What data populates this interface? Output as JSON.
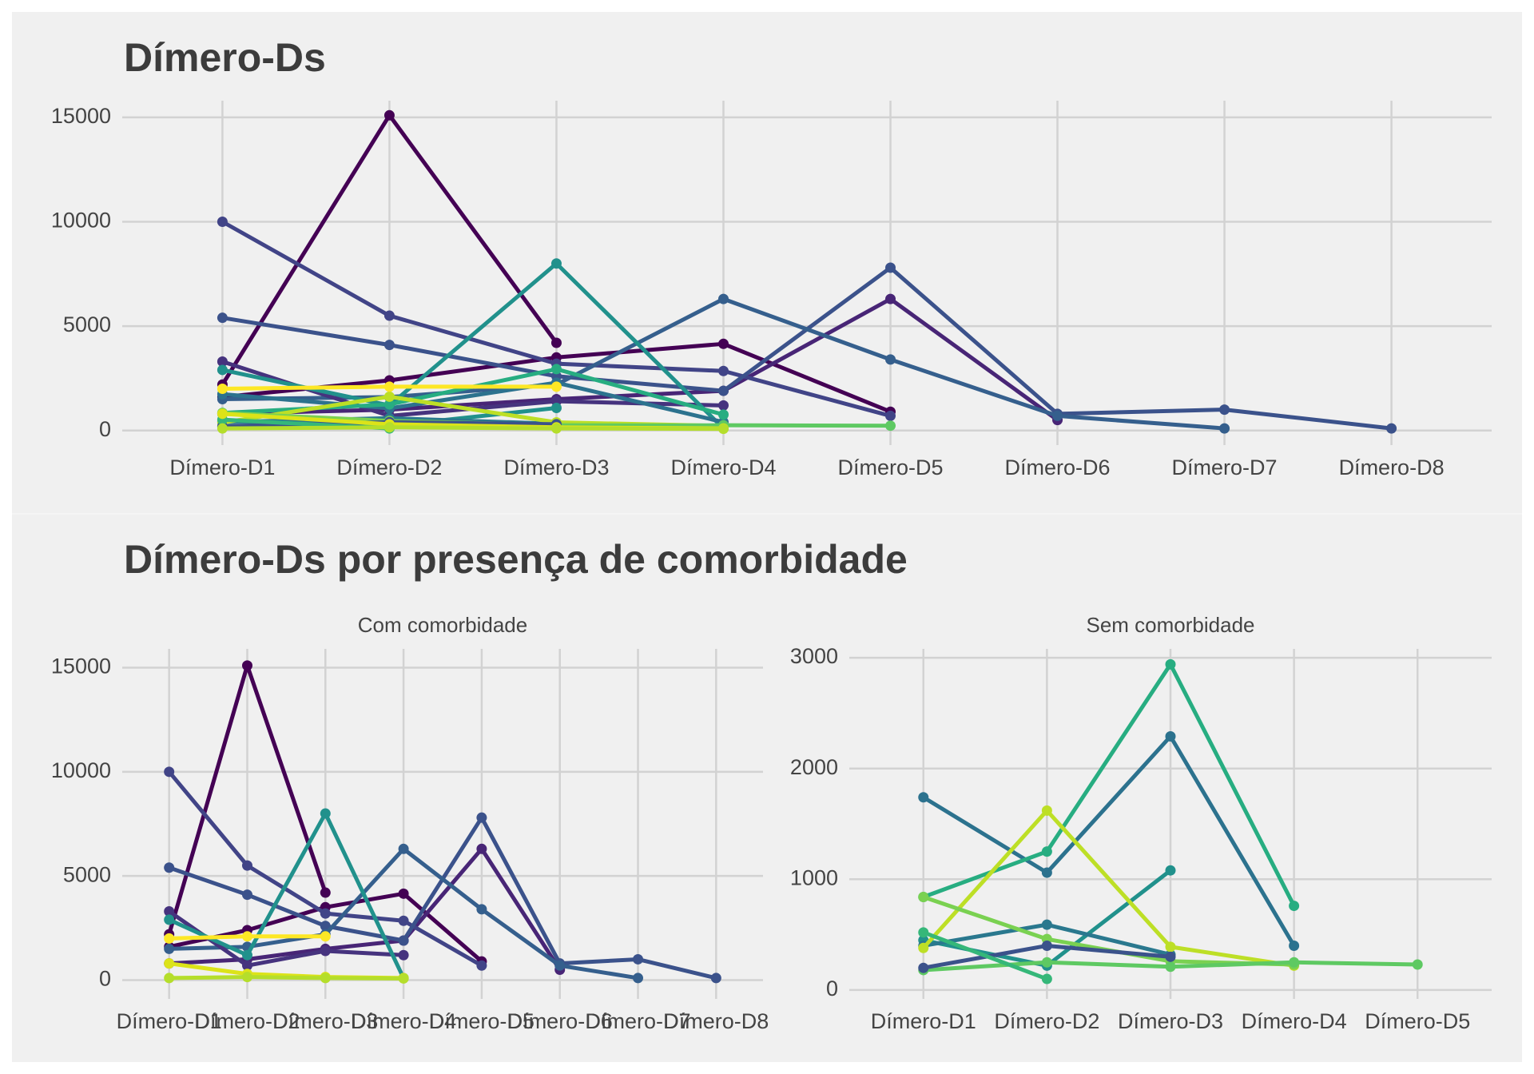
{
  "chart_data": [
    {
      "type": "line",
      "title": "Dímero-Ds",
      "categories": [
        "Dímero-D1",
        "Dímero-D2",
        "Dímero-D3",
        "Dímero-D4",
        "Dímero-D5",
        "Dímero-D6",
        "Dímero-D7",
        "Dímero-D8"
      ],
      "ylim": [
        -700,
        15800
      ],
      "yticks": [
        0,
        5000,
        10000,
        15000
      ],
      "grid": true,
      "series": [
        {
          "color": "#440154",
          "values": [
            2200,
            15100,
            4200,
            null,
            null,
            null,
            null,
            null
          ]
        },
        {
          "color": "#440154",
          "values": [
            1600,
            2400,
            3500,
            4150,
            900,
            null,
            null,
            null
          ]
        },
        {
          "color": "#482576",
          "values": [
            800,
            1000,
            1500,
            1900,
            6300,
            500,
            null,
            null
          ]
        },
        {
          "color": "#414487",
          "values": [
            10000,
            5500,
            3200,
            2850,
            700,
            null,
            null,
            null
          ]
        },
        {
          "color": "#3b528b",
          "values": [
            5400,
            4100,
            2600,
            1900,
            7800,
            800,
            1000,
            100
          ]
        },
        {
          "color": "#355f8d",
          "values": [
            1500,
            1600,
            2200,
            6300,
            3400,
            700,
            100,
            null
          ]
        },
        {
          "color": "#46337e",
          "values": [
            3300,
            700,
            1400,
            1200,
            null,
            null,
            null,
            null
          ]
        },
        {
          "color": "#21918c",
          "values": [
            2900,
            1200,
            8000,
            100,
            null,
            null,
            null,
            null
          ]
        },
        {
          "color": "#2c728e",
          "values": [
            1740,
            1060,
            2290,
            400,
            null,
            null,
            null,
            null
          ]
        },
        {
          "color": "#27ad81",
          "values": [
            840,
            1250,
            2940,
            760,
            null,
            null,
            null,
            null
          ]
        },
        {
          "color": "#21918c",
          "values": [
            450,
            220,
            1080,
            null,
            null,
            null,
            null,
            null
          ]
        },
        {
          "color": "#2a788e",
          "values": [
            400,
            590,
            320,
            null,
            null,
            null,
            null,
            null
          ]
        },
        {
          "color": "#bddf26",
          "values": [
            380,
            1620,
            390,
            220,
            null,
            null,
            null,
            null
          ]
        },
        {
          "color": "#7ad151",
          "values": [
            840,
            460,
            260,
            230,
            null,
            null,
            null,
            null
          ]
        },
        {
          "color": "#5ec962",
          "values": [
            180,
            250,
            210,
            250,
            230,
            null,
            null,
            null
          ]
        },
        {
          "color": "#3b528b",
          "values": [
            200,
            400,
            300,
            null,
            null,
            null,
            null,
            null
          ]
        },
        {
          "color": "#35b779",
          "values": [
            520,
            100,
            null,
            null,
            null,
            null,
            null,
            null
          ]
        },
        {
          "color": "#fde725",
          "values": [
            2000,
            2100,
            2100,
            null,
            null,
            null,
            null,
            null
          ]
        },
        {
          "color": "#dce319",
          "values": [
            800,
            300,
            150,
            100,
            null,
            null,
            null,
            null
          ]
        },
        {
          "color": "#b5de2b",
          "values": [
            100,
            150,
            100,
            80,
            null,
            null,
            null,
            null
          ]
        }
      ]
    },
    {
      "type": "line",
      "suptitle": "Dímero-Ds por presença de comorbidade",
      "title": "Com comorbidade",
      "categories": [
        "Dímero-D1",
        "Dímero-D2",
        "Dímero-D3",
        "Dímero-D4",
        "Dímero-D5",
        "Dímero-D6",
        "Dímero-D7",
        "Dímero-D8"
      ],
      "ylim": [
        -900,
        15900
      ],
      "yticks": [
        0,
        5000,
        10000,
        15000
      ],
      "grid": true,
      "series": [
        {
          "color": "#440154",
          "values": [
            2200,
            15100,
            4200,
            null,
            null,
            null,
            null,
            null
          ]
        },
        {
          "color": "#440154",
          "values": [
            1600,
            2400,
            3500,
            4150,
            900,
            null,
            null,
            null
          ]
        },
        {
          "color": "#482576",
          "values": [
            800,
            1000,
            1500,
            1900,
            6300,
            500,
            null,
            null
          ]
        },
        {
          "color": "#414487",
          "values": [
            10000,
            5500,
            3200,
            2850,
            700,
            null,
            null,
            null
          ]
        },
        {
          "color": "#3b528b",
          "values": [
            5400,
            4100,
            2600,
            1900,
            7800,
            800,
            1000,
            100
          ]
        },
        {
          "color": "#355f8d",
          "values": [
            1500,
            1600,
            2200,
            6300,
            3400,
            700,
            100,
            null
          ]
        },
        {
          "color": "#46337e",
          "values": [
            3300,
            700,
            1400,
            1200,
            null,
            null,
            null,
            null
          ]
        },
        {
          "color": "#21918c",
          "values": [
            2900,
            1200,
            8000,
            100,
            null,
            null,
            null,
            null
          ]
        },
        {
          "color": "#fde725",
          "values": [
            2000,
            2100,
            2100,
            null,
            null,
            null,
            null,
            null
          ]
        },
        {
          "color": "#dce319",
          "values": [
            800,
            300,
            150,
            100,
            null,
            null,
            null,
            null
          ]
        },
        {
          "color": "#b5de2b",
          "values": [
            100,
            150,
            100,
            80,
            null,
            null,
            null,
            null
          ]
        }
      ]
    },
    {
      "type": "line",
      "title": "Sem comorbidade",
      "categories": [
        "Dímero-D1",
        "Dímero-D2",
        "Dímero-D3",
        "Dímero-D4",
        "Dímero-D5"
      ],
      "ylim": [
        -80,
        3080
      ],
      "yticks": [
        0,
        1000,
        2000,
        3000
      ],
      "grid": true,
      "series": [
        {
          "color": "#2c728e",
          "values": [
            1740,
            1060,
            2290,
            400,
            null
          ]
        },
        {
          "color": "#27ad81",
          "values": [
            840,
            1250,
            2940,
            760,
            null
          ]
        },
        {
          "color": "#21918c",
          "values": [
            450,
            220,
            1080,
            null,
            null
          ]
        },
        {
          "color": "#2a788e",
          "values": [
            400,
            590,
            320,
            null,
            null
          ]
        },
        {
          "color": "#bddf26",
          "values": [
            380,
            1620,
            390,
            220,
            null
          ]
        },
        {
          "color": "#7ad151",
          "values": [
            840,
            460,
            260,
            230,
            null
          ]
        },
        {
          "color": "#5ec962",
          "values": [
            180,
            250,
            210,
            250,
            230
          ]
        },
        {
          "color": "#3b528b",
          "values": [
            200,
            400,
            300,
            null,
            null
          ]
        },
        {
          "color": "#35b779",
          "values": [
            520,
            100,
            null,
            null,
            null
          ]
        }
      ]
    }
  ]
}
